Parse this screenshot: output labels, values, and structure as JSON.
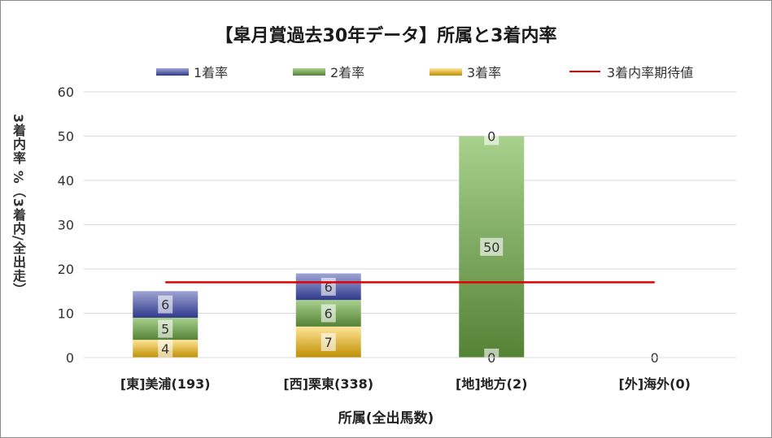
{
  "chart_data": {
    "type": "bar",
    "stacked": true,
    "title": "【皐月賞過去30年データ】所属と3着内率",
    "xlabel": "所属(全出馬数)",
    "ylabel": "3着内率 %（3着内/全出走）",
    "ylim": [
      0,
      60
    ],
    "yticks": [
      0,
      10,
      20,
      30,
      40,
      50,
      60
    ],
    "grid": true,
    "legend_position": "top",
    "categories": [
      "[東]美浦(193)",
      "[西]栗東(338)",
      "[地]地方(2)",
      "[外]海外(0)"
    ],
    "series": [
      {
        "name": "1着率",
        "type": "bar",
        "values": [
          6,
          6,
          0,
          0
        ],
        "labels": [
          "6",
          "6",
          "0",
          ""
        ],
        "color_top": "#9ea4d3",
        "color_bottom": "#2f3a8c"
      },
      {
        "name": "2着率",
        "type": "bar",
        "values": [
          5,
          6,
          50,
          0
        ],
        "labels": [
          "5",
          "6",
          "50",
          ""
        ],
        "color_top": "#a9d18e",
        "color_bottom": "#548235"
      },
      {
        "name": "3着率",
        "type": "bar",
        "values": [
          4,
          7,
          0,
          0
        ],
        "labels": [
          "4",
          "7",
          "0",
          "0"
        ],
        "color_top": "#ffe699",
        "color_bottom": "#bf8f00"
      },
      {
        "name": "3着内率期待値",
        "type": "line",
        "value": 17,
        "color": "#e00000"
      }
    ]
  }
}
